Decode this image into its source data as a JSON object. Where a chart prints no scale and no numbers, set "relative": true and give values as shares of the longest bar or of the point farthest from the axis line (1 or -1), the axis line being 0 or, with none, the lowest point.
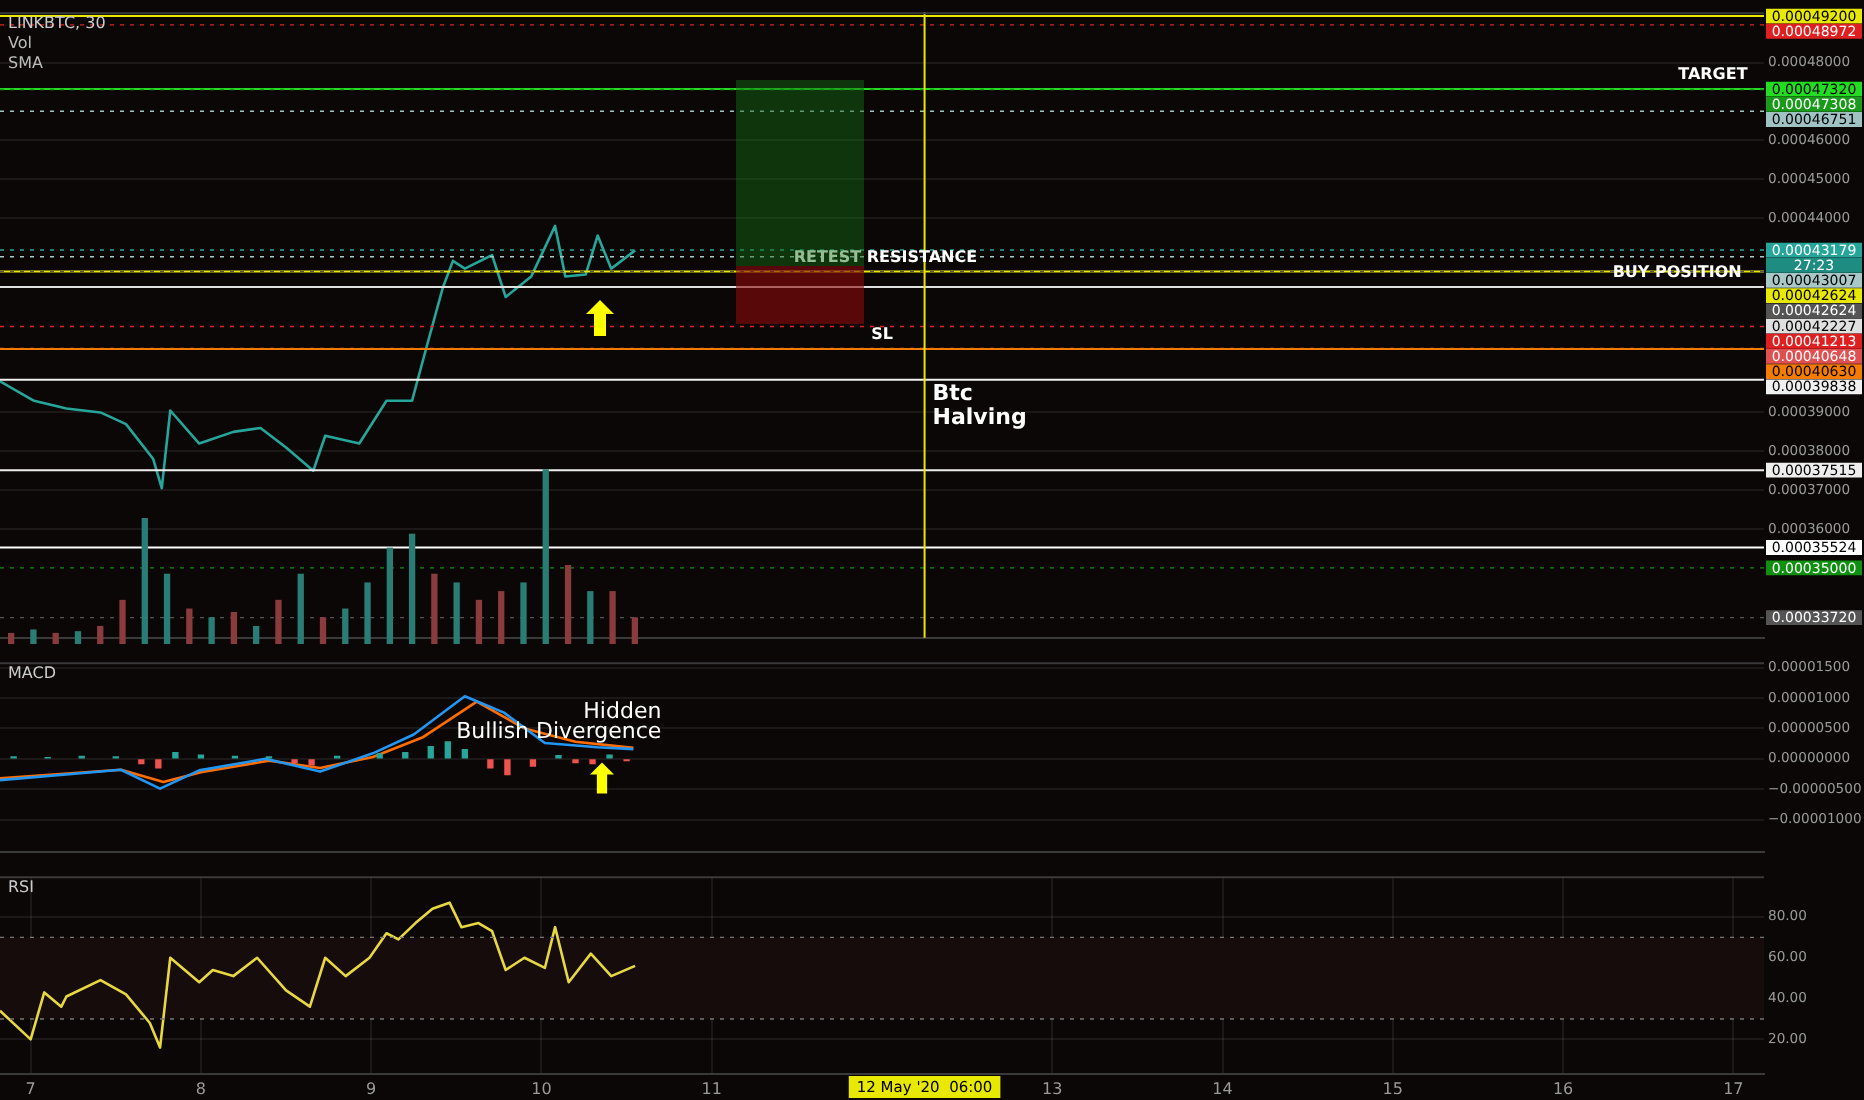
{
  "chart_data": [
    {
      "type": "line",
      "title": "LINKBTC, 30",
      "color": "#26a69a",
      "x": [
        6.82,
        7.02,
        7.21,
        7.41,
        7.56,
        7.72,
        7.77,
        7.82,
        7.99,
        8.19,
        8.35,
        8.5,
        8.66,
        8.73,
        8.93,
        9.09,
        9.24,
        9.32,
        9.42,
        9.48,
        9.55,
        9.71,
        9.79,
        9.94,
        10.08,
        10.14,
        10.26,
        10.33,
        10.41,
        10.55
      ],
      "values": [
        0.000398,
        0.000393,
        0.000391,
        0.00039,
        0.000387,
        0.000378,
        0.0003705,
        0.0003905,
        0.000382,
        0.000385,
        0.000386,
        0.000381,
        0.000375,
        0.000384,
        0.000382,
        0.000393,
        0.000393,
        0.000406,
        0.000422,
        0.000429,
        0.000427,
        0.0004305,
        0.0004197,
        0.000425,
        0.000438,
        0.000425,
        0.0004255,
        0.0004355,
        0.000427,
        0.0004317
      ],
      "xlim": [
        6.82,
        17.18
      ],
      "ylim": [
        0.000332,
        0.000493
      ],
      "tick_labels": "y",
      "grid": true,
      "yticks": [
        {
          "value": 0.00036,
          "label": "0.00036000"
        },
        {
          "value": 0.00037,
          "label": "0.00037000"
        },
        {
          "value": 0.00038,
          "label": "0.00038000"
        },
        {
          "value": 0.00039,
          "label": "0.00039000"
        },
        {
          "value": 0.00044,
          "label": "0.00044000"
        },
        {
          "value": 0.00045,
          "label": "0.00045000"
        },
        {
          "value": 0.00046,
          "label": "0.00046000"
        },
        {
          "value": 0.00048,
          "label": "0.00048000"
        }
      ],
      "ref_lines": [
        {
          "axis": "y",
          "value": 0.000492,
          "label": "0.00049200",
          "color": "#e8e800",
          "line_style": "solid"
        },
        {
          "axis": "y",
          "value": 0.00048972,
          "label": "0.00048972",
          "color": "#e02020",
          "line_style": "dotted"
        },
        {
          "axis": "y",
          "value": 0.0004732,
          "label": "0.00047320",
          "color": "#22dd22",
          "line_style": "solid"
        },
        {
          "axis": "y",
          "value": 0.00047308,
          "label": "0.00047308",
          "color": "#1a9a1a",
          "line_style": "dotted"
        },
        {
          "axis": "y",
          "value": 0.00046751,
          "label": "0.00046751",
          "color": "#9fc3c3",
          "line_style": "dotted"
        },
        {
          "axis": "y",
          "value": 0.00043179,
          "label": "0.00043179",
          "color": "#26a69a",
          "line_style": "dotted"
        },
        {
          "axis": "y",
          "value": 0.00043007,
          "label": "0.00043007",
          "color": "#a8c8c8",
          "line_style": "dotted"
        },
        {
          "axis": "y",
          "value": 0.00042624,
          "label": "0.00042624",
          "color": "#e8e800",
          "line_style": "solid"
        },
        {
          "axis": "y",
          "value": 0.00042624,
          "label": "0.00042624",
          "color": "#555555",
          "line_style": "dotted"
        },
        {
          "axis": "y",
          "value": 0.00042227,
          "label": "0.00042227",
          "color": "#e0e0e0",
          "line_style": "solid"
        },
        {
          "axis": "y",
          "value": 0.00041213,
          "label": "0.00041213",
          "color": "#e02020",
          "line_style": "dotted"
        },
        {
          "axis": "y",
          "value": 0.00040648,
          "label": "0.00040648",
          "color": "#e05050",
          "line_style": "dotted"
        },
        {
          "axis": "y",
          "value": 0.0004063,
          "label": "0.00040630",
          "color": "#f57c00",
          "line_style": "solid"
        },
        {
          "axis": "y",
          "value": 0.00039838,
          "label": "0.00039838",
          "color": "#f0f0f0",
          "line_style": "solid"
        },
        {
          "axis": "y",
          "value": 0.00037515,
          "label": "0.00037515",
          "color": "#eeeeee",
          "line_style": "solid"
        },
        {
          "axis": "y",
          "value": 0.00035524,
          "label": "0.00035524",
          "color": "#ffffff",
          "line_style": "solid"
        },
        {
          "axis": "y",
          "value": 0.00035,
          "label": "0.00035000",
          "color": "#109010",
          "line_style": "dotted"
        },
        {
          "axis": "y",
          "value": 0.0003372,
          "label": "0.00033720",
          "color": "#555555",
          "line_style": "dotted"
        },
        {
          "axis": "x",
          "value": 12.25,
          "label": "Btc Halving",
          "color": "#e8e800",
          "line_style": "solid"
        }
      ],
      "annotations": [
        "Vol",
        "SMA",
        {
          "text": "TARGET",
          "x": 16.88,
          "y": 0.0004732
        },
        {
          "text": "RETEST RESISTANCE",
          "x": 12.02,
          "y": 0.00042624
        },
        {
          "text": "BUY POSITION",
          "x": 16.67,
          "y": 0.00042227
        },
        {
          "text": "SL",
          "x": 12.0,
          "y": 0.0004063
        },
        {
          "text": "27:23",
          "x": 17.18,
          "y": 0.00043179
        }
      ]
    },
    {
      "type": "bar",
      "relative": true,
      "tick_labels": false,
      "categories": [
        null,
        null,
        null,
        null,
        null,
        null,
        null,
        null,
        null,
        null,
        null,
        null,
        null,
        null,
        null,
        null,
        null,
        null,
        null,
        null,
        null,
        null,
        null,
        null,
        null,
        null,
        null,
        null,
        null
      ],
      "values": [
        0.06,
        0.08,
        0.06,
        0.07,
        0.1,
        0.25,
        0.72,
        0.4,
        0.2,
        0.15,
        0.18,
        0.1,
        0.25,
        0.4,
        0.15,
        0.2,
        0.35,
        0.55,
        0.63,
        0.4,
        0.35,
        0.25,
        0.3,
        0.35,
        1,
        0.45,
        0.3,
        0.3,
        0.15
      ],
      "colors": [
        "#8a3b3b",
        "#2a7d74",
        "#8a3b3b",
        "#2a7d74",
        "#8a3b3b",
        "#8a3b3b",
        "#2a7d74",
        "#2a7d74",
        "#8a3b3b",
        "#2a7d74",
        "#8a3b3b",
        "#2a7d74",
        "#8a3b3b",
        "#2a7d74",
        "#8a3b3b",
        "#2a7d74",
        "#2a7d74",
        "#2a7d74",
        "#2a7d74",
        "#8a3b3b",
        "#2a7d74",
        "#8a3b3b",
        "#8a3b3b",
        "#2a7d74",
        "#2a7d74",
        "#8a3b3b",
        "#2a7d74",
        "#8a3b3b",
        "#8a3b3b"
      ]
    },
    {
      "type": "line",
      "title": "MACD",
      "xlim": [
        6.82,
        17.18
      ],
      "ylim": [
        -1.53e-05,
        1.59e-05
      ],
      "tick_labels": "y",
      "grid": true,
      "yticks": [
        {
          "value": 1.5e-05,
          "label": "0.00001500"
        },
        {
          "value": 1e-05,
          "label": "0.00001000"
        },
        {
          "value": 5e-06,
          "label": "0.00000500"
        },
        {
          "value": 0,
          "label": "0.00000000"
        },
        {
          "value": -5e-06,
          "label": "−0.00000500"
        },
        {
          "value": -1e-05,
          "label": "−0.00001000"
        }
      ],
      "series": [
        {
          "type": "bar",
          "x": [
            6.9,
            7.1,
            7.3,
            7.5,
            7.65,
            7.75,
            7.85,
            8.0,
            8.2,
            8.4,
            8.55,
            8.65,
            8.8,
            9.05,
            9.2,
            9.35,
            9.45,
            9.55,
            9.7,
            9.8,
            9.95,
            10.1,
            10.2,
            10.3,
            10.4,
            10.5
          ],
          "values": [
            3e-07,
            2e-07,
            4e-07,
            3e-07,
            -8e-07,
            -1.5e-06,
            1e-06,
            6e-07,
            4e-07,
            3e-07,
            -6e-07,
            -1e-06,
            4e-07,
            8e-07,
            1e-06,
            2e-06,
            2.8e-06,
            1.5e-06,
            -1.5e-06,
            -2.6e-06,
            -1.2e-06,
            5e-07,
            -6e-07,
            -8e-07,
            6e-07,
            -3e-07
          ],
          "colors": [
            "#26a69a",
            "#26a69a",
            "#26a69a",
            "#26a69a",
            "#ef5350",
            "#ef5350",
            "#26a69a",
            "#26a69a",
            "#26a69a",
            "#26a69a",
            "#ef5350",
            "#ef5350",
            "#26a69a",
            "#26a69a",
            "#26a69a",
            "#26a69a",
            "#26a69a",
            "#26a69a",
            "#ef5350",
            "#ef5350",
            "#ef5350",
            "#26a69a",
            "#ef5350",
            "#ef5350",
            "#26a69a",
            "#ef5350"
          ]
        },
        {
          "type": "line",
          "color": "#2196f3",
          "x": [
            6.82,
            7.53,
            7.76,
            7.99,
            8.38,
            8.7,
            9.01,
            9.25,
            9.55,
            9.78,
            10.02,
            10.33,
            10.54
          ],
          "values": [
            -3.5e-06,
            -1.8e-06,
            -4.9e-06,
            -1.9e-06,
            0,
            -2.1e-06,
            9e-07,
            4e-06,
            1.03e-05,
            7.6e-06,
            2.6e-06,
            1.9e-06,
            1.6e-06
          ]
        },
        {
          "type": "line",
          "color": "#ff6d00",
          "x": [
            6.82,
            7.53,
            7.78,
            8.0,
            8.4,
            8.7,
            9.01,
            9.3,
            9.62,
            9.9,
            10.2,
            10.54
          ],
          "values": [
            -3.2e-06,
            -1.8e-06,
            -3.8e-06,
            -2.2e-06,
            -3e-07,
            -1.5e-06,
            3e-07,
            3.5e-06,
            9.4e-06,
            5e-06,
            2.8e-06,
            1.8e-06
          ]
        }
      ],
      "annotations": [
        {
          "text": "Hidden Bullish Divergence",
          "x": 10.54,
          "y": 1.6e-06
        }
      ]
    },
    {
      "type": "line",
      "title": "RSI",
      "color": "#e8d840",
      "xlim": [
        6.82,
        17.18
      ],
      "ylim": [
        3,
        100
      ],
      "grid": true,
      "x": [
        6.82,
        7.0,
        7.08,
        7.18,
        7.21,
        7.41,
        7.56,
        7.7,
        7.76,
        7.82,
        7.99,
        8.07,
        8.19,
        8.33,
        8.5,
        8.64,
        8.73,
        8.85,
        8.99,
        9.09,
        9.16,
        9.26,
        9.36,
        9.46,
        9.53,
        9.63,
        9.71,
        9.79,
        9.9,
        10.02,
        10.08,
        10.16,
        10.29,
        10.41,
        10.55
      ],
      "values": [
        34,
        20,
        43,
        36,
        41,
        49,
        42,
        28,
        16,
        60,
        48,
        54,
        51,
        60,
        44,
        36,
        60,
        51,
        60,
        72,
        69,
        77,
        84,
        87,
        75,
        77,
        73,
        54,
        60,
        55,
        75,
        48,
        62,
        51,
        56
      ],
      "xticks": [
        7,
        8,
        9,
        10,
        11,
        13,
        14,
        15,
        16,
        17
      ],
      "yticks": [
        {
          "value": 20,
          "label": "20.00"
        },
        {
          "value": 40,
          "label": "40.00"
        },
        {
          "value": 60,
          "label": "60.00"
        },
        {
          "value": 80,
          "label": "80.00"
        }
      ],
      "bands": [
        {
          "axis": "y",
          "from": 30,
          "to": 70,
          "color": "#160c0c"
        }
      ],
      "ref_lines": [
        {
          "axis": "y",
          "value": 70,
          "color": "#777777",
          "line_style": "dotted"
        },
        {
          "axis": "y",
          "value": 30,
          "color": "#777777",
          "line_style": "dotted"
        }
      ],
      "annotations": [
        "12 May '20  06:00"
      ]
    }
  ]
}
